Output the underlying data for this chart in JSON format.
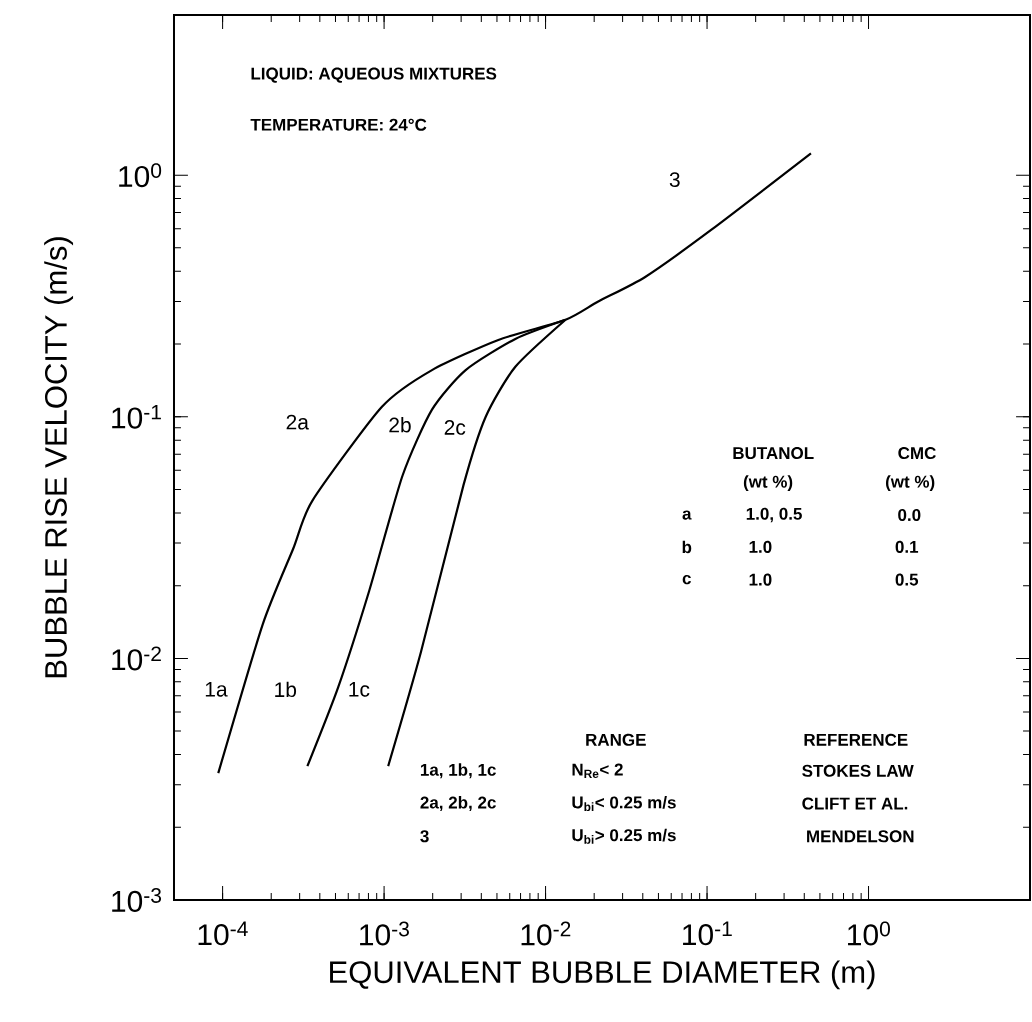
{
  "chart_data": {
    "type": "line",
    "xlabel": "EQUIVALENT BUBBLE DIAMETER (m)",
    "ylabel": "BUBBLE  RISE VELOCITY (m/s)",
    "log": "xy",
    "marker": "none",
    "xlim": [
      5e-05,
      10
    ],
    "ylim": [
      0.001,
      4.6
    ],
    "xticks": [
      {
        "value": 0.0001,
        "label": "10$^{-4}$"
      },
      {
        "value": 0.001,
        "label": "10$^{-3}$"
      },
      {
        "value": 0.01,
        "label": "10$^{-2}$"
      },
      {
        "value": 0.1,
        "label": "10$^{-1}$"
      },
      {
        "value": 1,
        "label": "10$^{0}$"
      }
    ],
    "yticks": [
      {
        "value": 0.001,
        "label": "10$^{-3}$"
      },
      {
        "value": 0.01,
        "label": "10$^{-2}$"
      },
      {
        "value": 0.1,
        "label": "10$^{-1}$"
      },
      {
        "value": 1,
        "label": "10$^{0}$"
      }
    ],
    "series": [
      {
        "color": "#000000",
        "x": [
          9.4e-05,
          0.000177,
          0.000274,
          0.00036,
          0.00097,
          0.00198,
          0.0051,
          0.0133,
          0.0212,
          0.0414,
          0.106,
          0.44
        ],
        "values": [
          0.00335,
          0.0138,
          0.0285,
          0.045,
          0.11,
          0.156,
          0.208,
          0.252,
          0.3,
          0.379,
          0.593,
          1.23
        ]
      },
      {
        "color": "#000000",
        "x": [
          0.000335,
          0.00052,
          0.00081,
          0.0013,
          0.00198,
          0.0032,
          0.0065,
          0.0133
        ],
        "values": [
          0.00358,
          0.0076,
          0.0191,
          0.057,
          0.107,
          0.156,
          0.21,
          0.252
        ]
      },
      {
        "color": "#000000",
        "x": [
          0.00106,
          0.00169,
          0.0031,
          0.00426,
          0.0065,
          0.0133
        ],
        "values": [
          0.00358,
          0.0106,
          0.052,
          0.1,
          0.161,
          0.252
        ]
      }
    ],
    "annotations": [
      "LIQUID: AQUEOUS MIXTURES",
      "TEMPERATURE: 24°C",
      "BUTANOL",
      "(wt %)",
      "CMC",
      "(wt %)",
      "a",
      "1.0, 0.5",
      "0.0",
      "b",
      "1.0",
      "0.1",
      "c",
      "1.0",
      "0.5",
      "RANGE",
      "REFERENCE",
      "1a, 1b, 1c",
      "N$_{Re}$< 2",
      "STOKES LAW",
      "2a, 2b, 2c",
      "U$_{bi}$< 0.25  m/s",
      "CLIFT ET AL.",
      "3",
      "U$_{bi}$> 0.25  m/s",
      "MENDELSON",
      "1a",
      "1b",
      "1c",
      "2a",
      "2b",
      "2c",
      "3"
    ]
  }
}
